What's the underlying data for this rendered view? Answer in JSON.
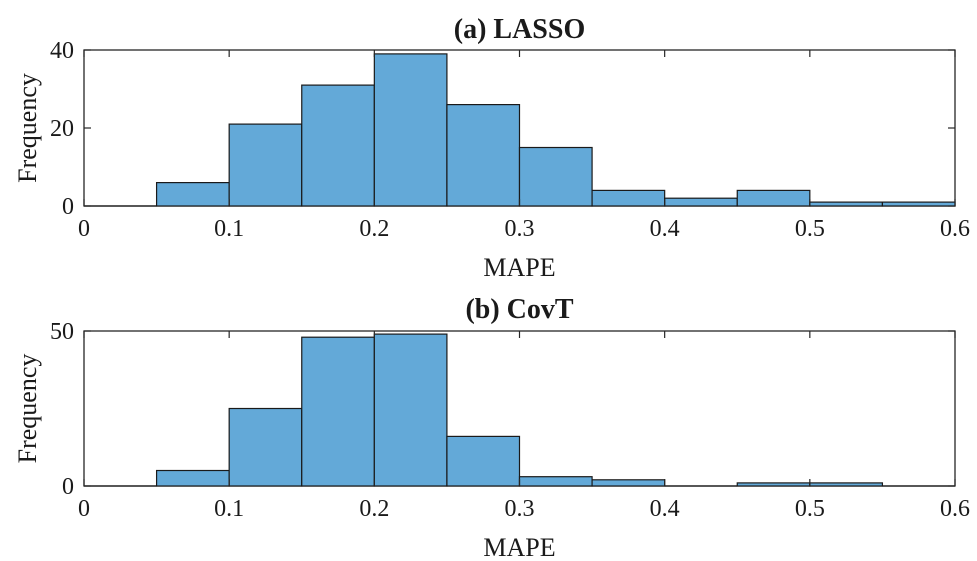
{
  "colors": {
    "bar_fill": "#63a9d8",
    "bar_edge": "#1a1a1a",
    "axis": "#262626"
  },
  "chart_data": [
    {
      "type": "bar",
      "title": "(a)  LASSO",
      "xlabel": "MAPE",
      "ylabel": "Frequency",
      "xlim": [
        0,
        0.6
      ],
      "ylim": [
        0,
        40
      ],
      "xticks": [
        "0",
        "0.1",
        "0.2",
        "0.3",
        "0.4",
        "0.5",
        "0.6"
      ],
      "yticks": [
        "0",
        "20",
        "40"
      ],
      "bin_edges": [
        0,
        0.05,
        0.1,
        0.15,
        0.2,
        0.25,
        0.3,
        0.35,
        0.4,
        0.45,
        0.5,
        0.55,
        0.6
      ],
      "values": [
        0,
        6,
        21,
        31,
        39,
        26,
        15,
        4,
        2,
        4,
        1,
        1
      ],
      "grid": false,
      "legend": "none"
    },
    {
      "type": "bar",
      "title": "(b)  CovT",
      "xlabel": "MAPE",
      "ylabel": "Frequency",
      "xlim": [
        0,
        0.6
      ],
      "ylim": [
        0,
        50
      ],
      "xticks": [
        "0",
        "0.1",
        "0.2",
        "0.3",
        "0.4",
        "0.5",
        "0.6"
      ],
      "yticks": [
        "0",
        "50"
      ],
      "bin_edges": [
        0,
        0.05,
        0.1,
        0.15,
        0.2,
        0.25,
        0.3,
        0.35,
        0.4,
        0.45,
        0.5,
        0.55,
        0.6
      ],
      "values": [
        0,
        5,
        25,
        48,
        49,
        16,
        3,
        2,
        0,
        1,
        1,
        0
      ],
      "grid": false,
      "legend": "none"
    }
  ]
}
